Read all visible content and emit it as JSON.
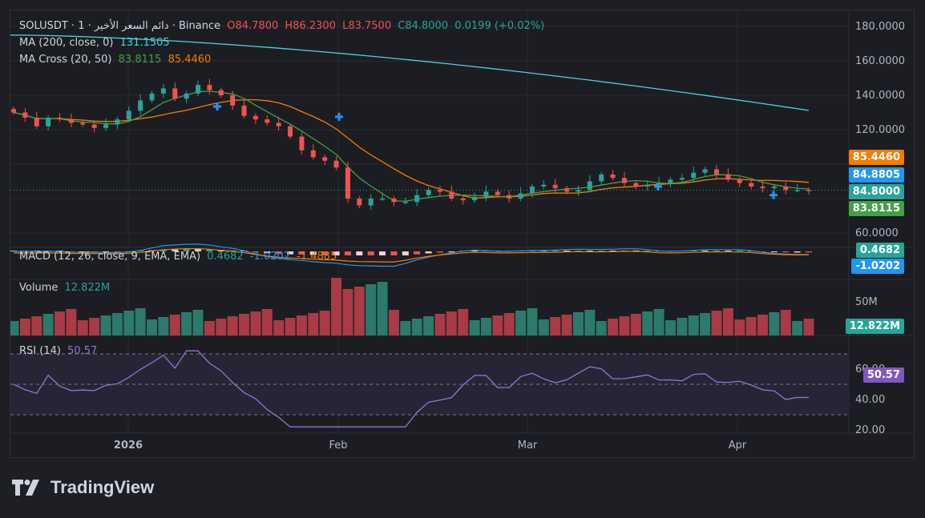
{
  "header": {
    "symbol": "SOLUSDT · 1 · دائم السعر الأخير · Binance",
    "open": "O84.7800",
    "high": "H86.2300",
    "low": "L83.7500",
    "close": "C84.8000",
    "change": "0.0199 (+0.02%)"
  },
  "indicators": {
    "ma200": {
      "label": "MA (200, close, 0)",
      "value": "131.1505",
      "color": "#4dd0e1"
    },
    "ma_cross": {
      "label": "MA Cross (20, 50)",
      "fast": "83.8115",
      "slow": "85.4460",
      "fast_color": "#43a047",
      "slow_color": "#f57c00"
    },
    "macd": {
      "label": "MACD (12, 26, close, 9, EMA, EMA)",
      "hist": "0.4682",
      "macd": "-1.0202",
      "signal": "-1.4885"
    },
    "volume": {
      "label": "Volume",
      "value": "12.822M"
    },
    "rsi": {
      "label": "RSI (14)",
      "value": "50.57",
      "color": "#9575cd"
    }
  },
  "price_axis": {
    "ticks": [
      "180.0000",
      "160.0000",
      "140.0000",
      "120.0000",
      "60.0000"
    ],
    "labels": {
      "slow_ma": "85.4460",
      "last_price_alt": "84.8805",
      "last": "84.8000",
      "fast_ma": "83.8115"
    },
    "label_colors": {
      "slow_ma": "#f57c00",
      "last_price_alt": "#2196f3",
      "last": "#26a69a",
      "fast_ma": "#43a047"
    }
  },
  "macd_axis": {
    "hist_label": "0.4682",
    "macd_label": "-1.0202"
  },
  "volume_axis": {
    "tick": "50M",
    "label": "12.822M"
  },
  "rsi_axis": {
    "ticks": [
      "60.00",
      "40.00",
      "20.00"
    ],
    "label": "50.57"
  },
  "time_axis": {
    "labels": [
      "2026",
      "Feb",
      "Mar",
      "Apr"
    ]
  },
  "brand": "TradingView",
  "chart_data": {
    "type": "candlestick",
    "symbol": "SOLUSDT",
    "price_range": [
      50,
      190
    ],
    "ma200_range": [
      131.15,
      173
    ],
    "rsi_levels": [
      70,
      50,
      30
    ],
    "candles_close_approx": [
      130,
      127,
      122,
      127,
      126,
      124,
      123,
      121,
      123,
      126,
      131,
      137,
      141,
      144,
      138,
      141,
      146,
      143,
      140,
      134,
      128,
      126,
      124,
      122,
      116,
      108,
      104,
      102,
      98,
      80,
      76,
      80,
      80,
      78,
      78,
      82,
      85,
      84,
      80,
      79,
      81,
      84,
      82,
      80,
      83,
      87,
      88,
      86,
      84,
      85,
      90,
      94,
      92,
      89,
      87,
      88,
      89,
      91,
      92,
      95,
      97,
      94,
      91,
      89,
      87,
      86,
      87,
      85,
      85,
      84.8
    ]
  }
}
